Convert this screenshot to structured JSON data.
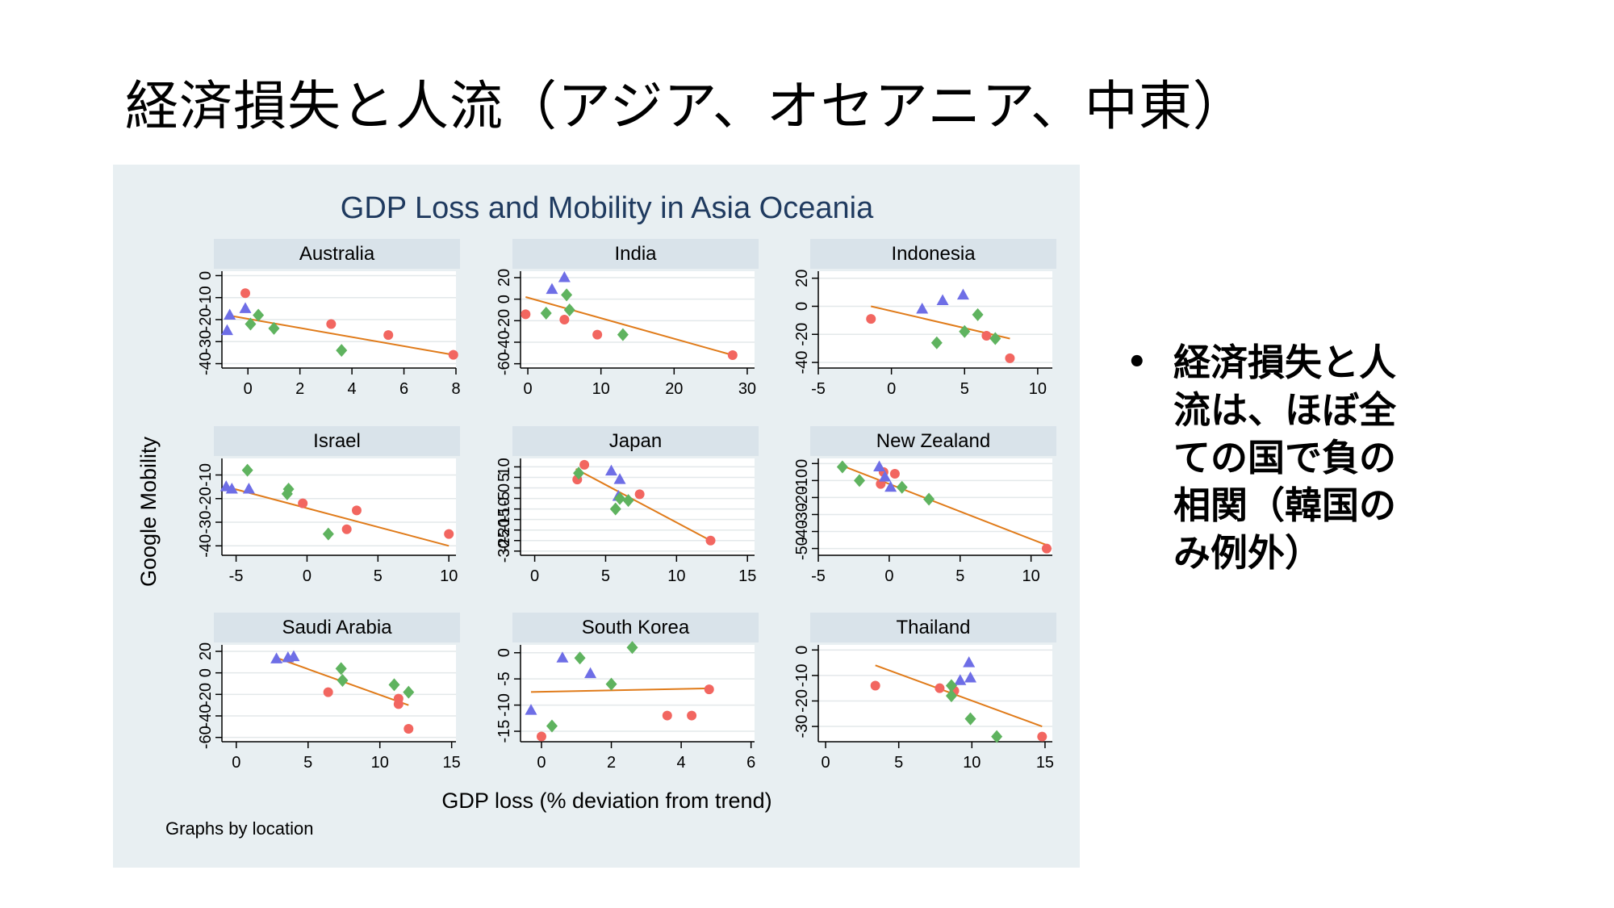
{
  "slide": {
    "title": "経済損失と人流（アジア、オセアニア、中東）",
    "bullet_marker": "•",
    "bullet_text": "経済損失と人流は、ほぼ全ての国で負の相関（韓国のみ例外）"
  },
  "colors": {
    "background": "#e8eff2",
    "title_color": "#1f3a5f",
    "header_fill": "#d9e3ea",
    "red": "#f26660",
    "blue": "#6e6ee6",
    "green": "#5fb35f",
    "fit_line": "#e07b1a"
  },
  "chart_data": {
    "type": "scatter",
    "title": "GDP Loss and Mobility in Asia Oceania",
    "xlabel": "GDP loss (% deviation from trend)",
    "ylabel": "Google Mobility",
    "note": "Graphs by location",
    "marker_groups": [
      {
        "marker": "circle",
        "color": "red"
      },
      {
        "marker": "triangle",
        "color": "blue"
      },
      {
        "marker": "diamond",
        "color": "green"
      }
    ],
    "panels": [
      {
        "name": "Australia",
        "xlim": [
          -1,
          8
        ],
        "xticks": [
          0,
          2,
          4,
          6,
          8
        ],
        "ylim": [
          -42,
          2
        ],
        "yticks": [
          -40,
          -30,
          -20,
          -10,
          0
        ],
        "ytick_labels": [
          "-40",
          "-30",
          "-20",
          "-10",
          "0"
        ],
        "points": {
          "red": [
            [
              -0.1,
              -8
            ],
            [
              3.2,
              -22
            ],
            [
              5.4,
              -27
            ],
            [
              7.9,
              -36
            ]
          ],
          "blue": [
            [
              -0.7,
              -18
            ],
            [
              -0.1,
              -15
            ],
            [
              -0.8,
              -25
            ]
          ],
          "green": [
            [
              0.4,
              -18
            ],
            [
              0.1,
              -22
            ],
            [
              1.0,
              -24
            ],
            [
              3.6,
              -34
            ]
          ]
        },
        "fit": [
          [
            -0.8,
            -18
          ],
          [
            7.9,
            -36
          ]
        ]
      },
      {
        "name": "India",
        "xlim": [
          -1,
          31
        ],
        "xticks": [
          0,
          10,
          20,
          30
        ],
        "ylim": [
          -64,
          26
        ],
        "yticks": [
          -60,
          -40,
          -20,
          0,
          20
        ],
        "ytick_labels": [
          "-60",
          "-40",
          "-20",
          "0",
          "20"
        ],
        "points": {
          "red": [
            [
              -0.3,
              -14
            ],
            [
              5,
              -19
            ],
            [
              9.5,
              -33
            ],
            [
              28,
              -52
            ]
          ],
          "blue": [
            [
              5,
              20
            ],
            [
              3.3,
              9
            ]
          ],
          "green": [
            [
              5.3,
              4
            ],
            [
              5.7,
              -10
            ],
            [
              2.5,
              -13
            ],
            [
              13,
              -33
            ]
          ]
        },
        "fit": [
          [
            -0.3,
            2
          ],
          [
            28,
            -52
          ]
        ]
      },
      {
        "name": "Indonesia",
        "xlim": [
          -5,
          11
        ],
        "xticks": [
          -5,
          0,
          5,
          10
        ],
        "ylim": [
          -44,
          25
        ],
        "yticks": [
          -40,
          -20,
          0,
          20
        ],
        "ytick_labels": [
          "-40",
          "-20",
          "0",
          "20"
        ],
        "points": {
          "red": [
            [
              -1.4,
              -9
            ],
            [
              6.5,
              -21
            ],
            [
              8.1,
              -37
            ]
          ],
          "blue": [
            [
              2.1,
              -2
            ],
            [
              3.5,
              4
            ],
            [
              4.9,
              8
            ]
          ],
          "green": [
            [
              3.1,
              -26
            ],
            [
              5.0,
              -18
            ],
            [
              5.9,
              -6
            ],
            [
              7.1,
              -23
            ]
          ]
        },
        "fit": [
          [
            -1.4,
            0
          ],
          [
            8.1,
            -23
          ]
        ]
      },
      {
        "name": "Israel",
        "xlim": [
          -6,
          10.5
        ],
        "xticks": [
          -5,
          0,
          5,
          10
        ],
        "ylim": [
          -44,
          -3
        ],
        "yticks": [
          -40,
          -30,
          -20,
          -10
        ],
        "ytick_labels": [
          "-40",
          "-30",
          "-20",
          "-10"
        ],
        "points": {
          "red": [
            [
              -0.3,
              -22
            ],
            [
              3.5,
              -25
            ],
            [
              2.8,
              -33
            ],
            [
              10,
              -35
            ]
          ],
          "blue": [
            [
              -5.7,
              -15
            ],
            [
              -5.3,
              -16
            ],
            [
              -4.1,
              -16
            ]
          ],
          "green": [
            [
              -4.2,
              -8
            ],
            [
              -1.4,
              -18
            ],
            [
              -1.3,
              -16
            ],
            [
              1.5,
              -35
            ]
          ]
        },
        "fit": [
          [
            -5.7,
            -15
          ],
          [
            10,
            -40
          ]
        ]
      },
      {
        "name": "Japan",
        "xlim": [
          -1,
          15.5
        ],
        "xticks": [
          0,
          5,
          10,
          15
        ],
        "ylim": [
          -32,
          14
        ],
        "yticks": [
          -30,
          -25,
          -20,
          -15,
          -10,
          -5,
          0,
          5,
          10
        ],
        "ytick_labels": [
          "-30",
          "-25",
          "-20",
          "-15",
          "-10",
          "-5",
          "0",
          "5",
          "10"
        ],
        "points": {
          "red": [
            [
              3.5,
              11
            ],
            [
              3.0,
              4
            ],
            [
              7.4,
              -3
            ],
            [
              12.4,
              -25
            ]
          ],
          "blue": [
            [
              5.4,
              8
            ],
            [
              6.0,
              4
            ],
            [
              5.9,
              -4
            ]
          ],
          "green": [
            [
              3.1,
              7
            ],
            [
              5.7,
              -10
            ],
            [
              6.6,
              -6
            ],
            [
              6.0,
              -5
            ]
          ]
        },
        "fit": [
          [
            2.9,
            9
          ],
          [
            12.4,
            -25
          ]
        ]
      },
      {
        "name": "New Zealand",
        "xlim": [
          -5,
          11.5
        ],
        "xticks": [
          -5,
          0,
          5,
          10
        ],
        "ylim": [
          -54,
          3
        ],
        "yticks": [
          -50,
          -40,
          -30,
          -20,
          -10,
          0
        ],
        "ytick_labels": [
          "-50",
          "-40",
          "-30",
          "-20",
          "-10",
          "0"
        ],
        "points": {
          "red": [
            [
              -0.6,
              -12
            ],
            [
              0.4,
              -6
            ],
            [
              -0.4,
              -5
            ],
            [
              11.1,
              -50
            ]
          ],
          "blue": [
            [
              -0.7,
              -2
            ],
            [
              -0.3,
              -8
            ],
            [
              0.1,
              -14
            ]
          ],
          "green": [
            [
              -3.3,
              -2
            ],
            [
              -2.1,
              -10
            ],
            [
              0.9,
              -14
            ],
            [
              2.8,
              -21
            ]
          ]
        },
        "fit": [
          [
            -3.4,
            -1
          ],
          [
            11.1,
            -48
          ]
        ]
      },
      {
        "name": "Saudi Arabia",
        "xlim": [
          -1,
          15.3
        ],
        "xticks": [
          0,
          5,
          10,
          15
        ],
        "ylim": [
          -64,
          26
        ],
        "yticks": [
          -60,
          -40,
          -20,
          0,
          20
        ],
        "ytick_labels": [
          "-60",
          "-40",
          "-20",
          "0",
          "20"
        ],
        "points": {
          "red": [
            [
              6.4,
              -18
            ],
            [
              11.3,
              -24
            ],
            [
              11.3,
              -29
            ],
            [
              12.0,
              -52
            ]
          ],
          "blue": [
            [
              2.8,
              13
            ],
            [
              3.6,
              14
            ],
            [
              4.0,
              15
            ]
          ],
          "green": [
            [
              7.3,
              4
            ],
            [
              7.4,
              -7
            ],
            [
              11.0,
              -11
            ],
            [
              12.0,
              -18
            ]
          ]
        },
        "fit": [
          [
            2.8,
            14
          ],
          [
            12.0,
            -30
          ]
        ]
      },
      {
        "name": "South Korea",
        "xlim": [
          -0.6,
          6.1
        ],
        "xticks": [
          0,
          2,
          4,
          6
        ],
        "ylim": [
          -17,
          1.5
        ],
        "yticks": [
          -15,
          -10,
          -5,
          0
        ],
        "ytick_labels": [
          "-15",
          "-10",
          "-5",
          "0"
        ],
        "points": {
          "red": [
            [
              0.0,
              -16
            ],
            [
              3.6,
              -12
            ],
            [
              4.3,
              -12
            ],
            [
              4.8,
              -7
            ]
          ],
          "blue": [
            [
              -0.3,
              -11
            ],
            [
              0.6,
              -1
            ],
            [
              1.4,
              -4
            ]
          ],
          "green": [
            [
              0.3,
              -14
            ],
            [
              1.1,
              -1
            ],
            [
              2.0,
              -6
            ],
            [
              2.6,
              1
            ]
          ]
        },
        "fit": [
          [
            -0.3,
            -7.5
          ],
          [
            4.8,
            -6.8
          ]
        ]
      },
      {
        "name": "Thailand",
        "xlim": [
          -0.5,
          15.5
        ],
        "xticks": [
          0,
          5,
          10,
          15
        ],
        "ylim": [
          -36,
          2
        ],
        "yticks": [
          -30,
          -20,
          -10,
          0
        ],
        "ytick_labels": [
          "-30",
          "-20",
          "-10",
          "0"
        ],
        "points": {
          "red": [
            [
              3.4,
              -14
            ],
            [
              7.8,
              -15
            ],
            [
              8.8,
              -16
            ],
            [
              14.8,
              -34
            ]
          ],
          "blue": [
            [
              9.8,
              -5
            ],
            [
              9.2,
              -12
            ],
            [
              9.9,
              -11
            ]
          ],
          "green": [
            [
              8.6,
              -14
            ],
            [
              8.6,
              -18
            ],
            [
              9.9,
              -27
            ],
            [
              11.7,
              -34
            ]
          ]
        },
        "fit": [
          [
            3.4,
            -6
          ],
          [
            14.8,
            -30
          ]
        ]
      }
    ]
  }
}
